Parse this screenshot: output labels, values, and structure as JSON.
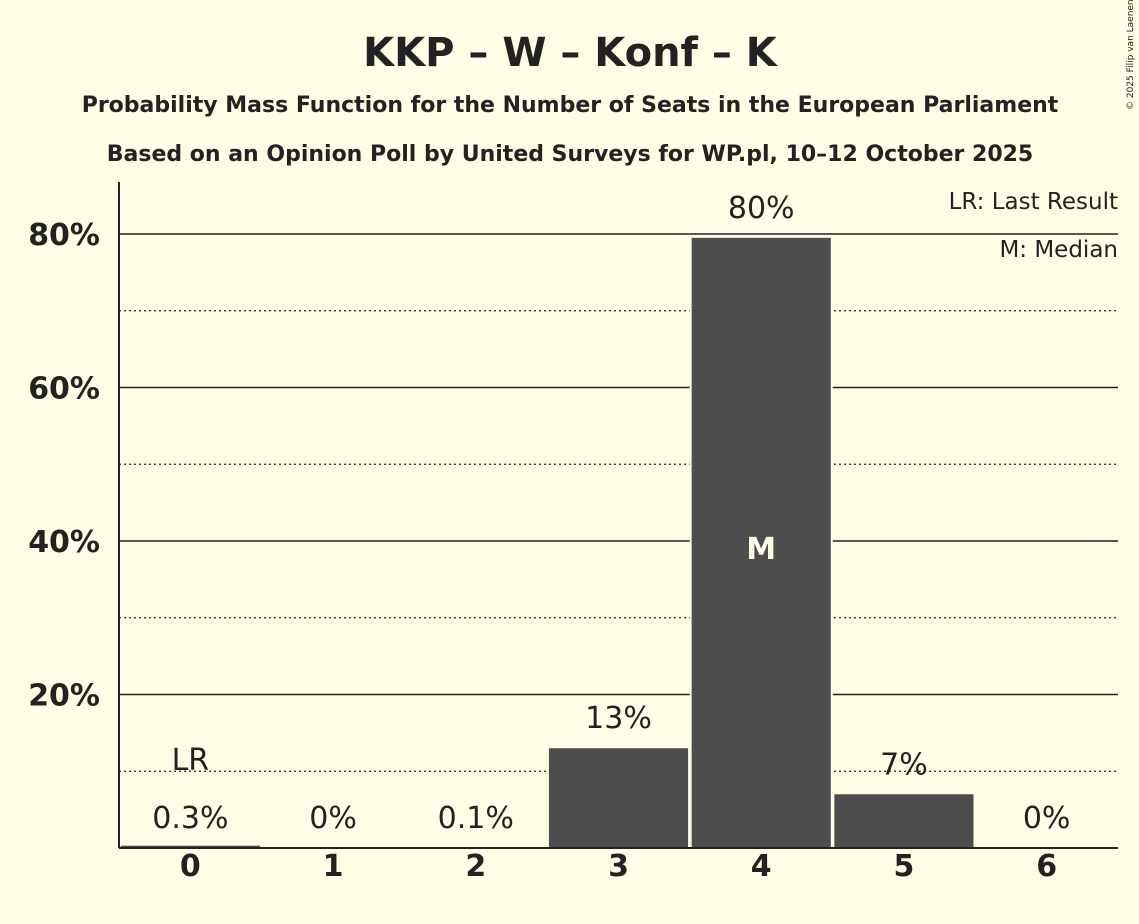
{
  "chart_data": {
    "type": "bar",
    "title": "KKP – W – Konf – K",
    "subtitle": "Probability Mass Function for the Number of Seats in the European Parliament",
    "subtitle2": "Based on an Opinion Poll by United Surveys for WP.pl, 10–12 October 2025",
    "categories": [
      "0",
      "1",
      "2",
      "3",
      "4",
      "5",
      "6"
    ],
    "values": [
      0.3,
      0,
      0.1,
      13,
      79.5,
      7,
      0
    ],
    "value_labels": [
      "0.3%",
      "0%",
      "0.1%",
      "13%",
      "80%",
      "7%",
      "0%"
    ],
    "yticks": [
      20,
      40,
      60,
      80
    ],
    "ytick_labels": [
      "20%",
      "40%",
      "60%",
      "80%"
    ],
    "ylim": [
      0,
      87
    ],
    "grid": "solid at 20% steps, dotted at 10% steps",
    "last_result_index": 0,
    "last_result_label": "LR",
    "median_index": 4,
    "median_label": "M",
    "legend": [
      "LR: Last Result",
      "M: Median"
    ],
    "legend_position": "top-right",
    "bar_color": "#4d4d4d",
    "background_color": "#fffde6",
    "copyright": "© 2025 Filip van Laenen"
  }
}
